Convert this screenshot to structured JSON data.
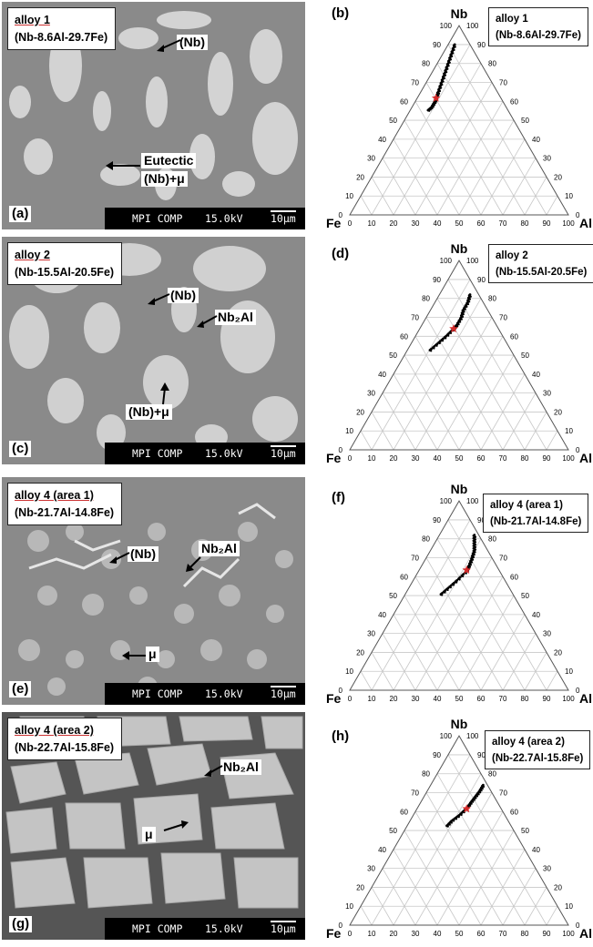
{
  "panels": [
    {
      "sem_letter": "(a)",
      "alloy": "alloy 1",
      "composition": "(Nb-8.6Al-29.7Fe)",
      "annotations": [
        "(Nb)",
        "Eutectic",
        "(Nb)+μ"
      ],
      "tern_letter": "(b)"
    },
    {
      "sem_letter": "(c)",
      "alloy": "alloy 2",
      "composition": "(Nb-15.5Al-20.5Fe)",
      "annotations": [
        "(Nb)",
        "Nb₂Al",
        "(Nb)+μ"
      ],
      "tern_letter": "(d)"
    },
    {
      "sem_letter": "(e)",
      "alloy": "alloy 4 (area 1)",
      "composition": "(Nb-21.7Al-14.8Fe)",
      "annotations": [
        "(Nb)",
        "Nb₂Al",
        "μ"
      ],
      "tern_letter": "(f)"
    },
    {
      "sem_letter": "(g)",
      "alloy": "alloy 4 (area 2)",
      "composition": "(Nb-22.7Al-15.8Fe)",
      "annotations": [
        "Nb₂Al",
        "μ"
      ],
      "tern_letter": "(h)"
    }
  ],
  "scalebar": {
    "left": "MPI COMP",
    "mid": "15.0kV",
    "right": "10μm"
  },
  "ternary": {
    "corners": {
      "top": "Nb",
      "left": "Fe",
      "right": "Al"
    },
    "ticks": [
      "0",
      "10",
      "20",
      "30",
      "40",
      "50",
      "60",
      "70",
      "80",
      "90",
      "100"
    ]
  },
  "colors": {
    "marker_star": "#d42a2a",
    "points": "#000000",
    "sem_matrix": "#8a8a8a",
    "sem_phase": "#d4d4d4"
  },
  "chart_data": [
    {
      "type": "scatter",
      "panel": "(b)",
      "axes": [
        "Nb",
        "Al",
        "Fe"
      ],
      "points_nb_al": [
        [
          90,
          3
        ],
        [
          85,
          4
        ],
        [
          80,
          5
        ],
        [
          75,
          6
        ],
        [
          70,
          7
        ],
        [
          65,
          8
        ],
        [
          62,
          8.6
        ],
        [
          60,
          9
        ],
        [
          57,
          9
        ],
        [
          55,
          8
        ]
      ],
      "nominal_star": {
        "Nb": 61.7,
        "Al": 8.6,
        "Fe": 29.7
      }
    },
    {
      "type": "scatter",
      "panel": "(d)",
      "axes": [
        "Nb",
        "Al",
        "Fe"
      ],
      "points_nb_al": [
        [
          82,
          14
        ],
        [
          78,
          15
        ],
        [
          74,
          15
        ],
        [
          70,
          16
        ],
        [
          66,
          16
        ],
        [
          64,
          15.5
        ],
        [
          60,
          14
        ],
        [
          56,
          12
        ],
        [
          52,
          10
        ]
      ],
      "nominal_star": {
        "Nb": 64.0,
        "Al": 15.5,
        "Fe": 20.5
      }
    },
    {
      "type": "scatter",
      "panel": "(f)",
      "axes": [
        "Nb",
        "Al",
        "Fe"
      ],
      "points_nb_al": [
        [
          82,
          16
        ],
        [
          78,
          18
        ],
        [
          74,
          20
        ],
        [
          70,
          21
        ],
        [
          66,
          21.7
        ],
        [
          63,
          22
        ],
        [
          58,
          20
        ],
        [
          54,
          18
        ],
        [
          50,
          16
        ]
      ],
      "nominal_star": {
        "Nb": 63.5,
        "Al": 21.7,
        "Fe": 14.8
      }
    },
    {
      "type": "scatter",
      "panel": "(h)",
      "axes": [
        "Nb",
        "Al",
        "Fe"
      ],
      "points_nb_al": [
        [
          74,
          24
        ],
        [
          71,
          24
        ],
        [
          68,
          23.5
        ],
        [
          65,
          23
        ],
        [
          62,
          22.7
        ],
        [
          58,
          21
        ],
        [
          55,
          19
        ],
        [
          52,
          18
        ]
      ],
      "nominal_star": {
        "Nb": 61.5,
        "Al": 22.7,
        "Fe": 15.8
      }
    }
  ]
}
